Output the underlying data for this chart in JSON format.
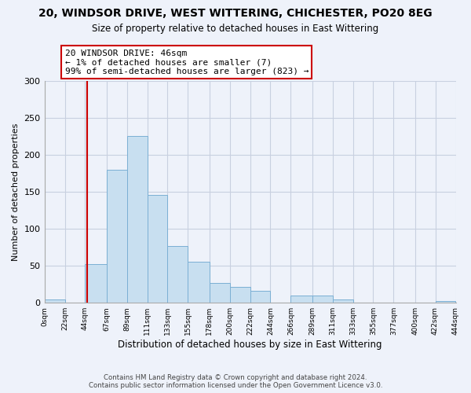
{
  "title_line1": "20, WINDSOR DRIVE, WEST WITTERING, CHICHESTER, PO20 8EG",
  "title_line2": "Size of property relative to detached houses in East Wittering",
  "xlabel": "Distribution of detached houses by size in East Wittering",
  "ylabel": "Number of detached properties",
  "bar_left_edges": [
    0,
    22,
    44,
    67,
    89,
    111,
    133,
    155,
    178,
    200,
    222,
    244,
    266,
    289,
    311,
    333,
    355,
    377,
    400,
    422
  ],
  "bar_widths": [
    22,
    22,
    23,
    22,
    22,
    22,
    22,
    23,
    22,
    22,
    22,
    22,
    23,
    22,
    22,
    22,
    22,
    23,
    22,
    22
  ],
  "bar_heights": [
    5,
    0,
    52,
    180,
    226,
    146,
    77,
    56,
    27,
    21,
    16,
    0,
    10,
    10,
    5,
    0,
    0,
    0,
    0,
    2
  ],
  "bar_color": "#c8dff0",
  "bar_edgecolor": "#7bafd4",
  "vline_x": 46,
  "vline_color": "#cc0000",
  "ylim": [
    0,
    300
  ],
  "yticks": [
    0,
    50,
    100,
    150,
    200,
    250,
    300
  ],
  "xtick_labels": [
    "0sqm",
    "22sqm",
    "44sqm",
    "67sqm",
    "89sqm",
    "111sqm",
    "133sqm",
    "155sqm",
    "178sqm",
    "200sqm",
    "222sqm",
    "244sqm",
    "266sqm",
    "289sqm",
    "311sqm",
    "333sqm",
    "355sqm",
    "377sqm",
    "400sqm",
    "422sqm",
    "444sqm"
  ],
  "annotation_title": "20 WINDSOR DRIVE: 46sqm",
  "annotation_line1": "← 1% of detached houses are smaller (7)",
  "annotation_line2": "99% of semi-detached houses are larger (823) →",
  "annotation_box_edgecolor": "#cc0000",
  "annotation_box_facecolor": "#ffffff",
  "footer_line1": "Contains HM Land Registry data © Crown copyright and database right 2024.",
  "footer_line2": "Contains public sector information licensed under the Open Government Licence v3.0.",
  "background_color": "#eef2fa",
  "plot_background_color": "#eef2fa",
  "grid_color": "#c8d0e0"
}
